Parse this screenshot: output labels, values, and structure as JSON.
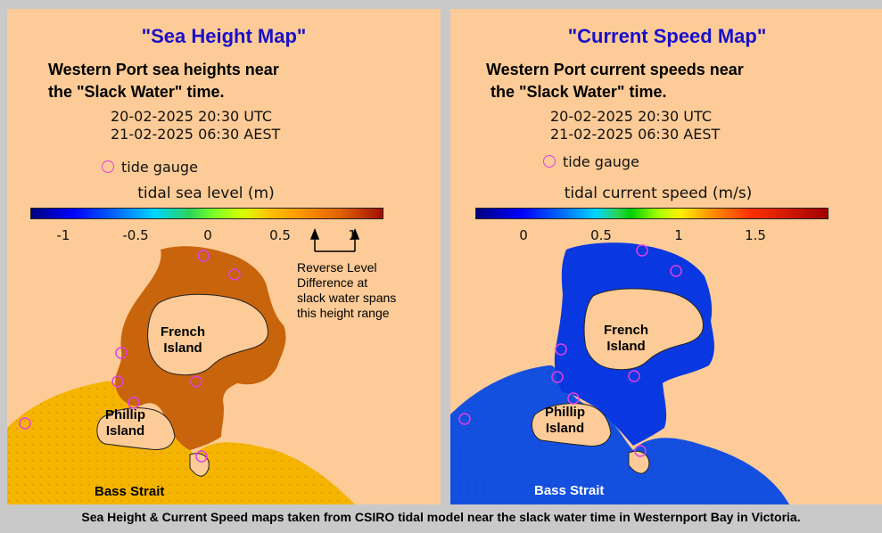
{
  "sea_height_panel": {
    "title": "\"Sea Height Map\"",
    "subtitle": "Western Port sea heights near\nthe \"Slack Water\" time.",
    "dates": "20-02-2025 20:30 UTC\n21-02-2025 06:30 AEST",
    "gauge_legend": "tide gauge",
    "colorbar_label": "tidal sea level (m)",
    "colorbar_ticks": [
      "-1",
      "-0.5",
      "0",
      "0.5",
      "1"
    ],
    "note": "Reverse Level\nDifference at\nslack water spans\nthis height range",
    "french_island": "French\nIsland",
    "phillip_island": "Phillip\nIsland",
    "bass_strait": "Bass Strait",
    "bay_color": "#c8640c",
    "sea_color": "#f5b400"
  },
  "current_speed_panel": {
    "title": "\"Current Speed Map\"",
    "subtitle": "Western Port current speeds near\n the \"Slack Water\" time.",
    "dates": "20-02-2025 20:30 UTC\n21-02-2025 06:30 AEST",
    "gauge_legend": "tide gauge",
    "colorbar_label": "tidal current speed (m/s)",
    "colorbar_ticks": [
      "0",
      "0.5",
      "1",
      "1.5"
    ],
    "french_island": "French\nIsland",
    "phillip_island": "Phillip\nIsland",
    "bass_strait": "Bass Strait",
    "bay_color": "#0a38e0",
    "sea_color": "#1450e0"
  },
  "caption": "Sea Height & Current Speed maps taken from CSIRO tidal model near the slack water time in Westernport Bay in Victoria."
}
